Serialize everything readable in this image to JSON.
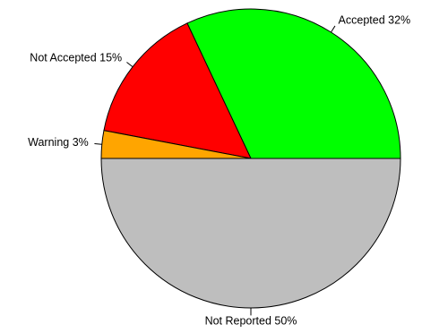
{
  "chart_data": {
    "type": "pie",
    "start_angle_deg": 0,
    "direction": "counterclockwise",
    "slices": [
      {
        "label": "Accepted 32%",
        "value": 32,
        "color": "#00ff00"
      },
      {
        "label": "Not Accepted 15%",
        "value": 15,
        "color": "#ff0000"
      },
      {
        "label": "Warning 3%",
        "value": 3,
        "color": "#ffa500"
      },
      {
        "label": "Not Reported 50%",
        "value": 50,
        "color": "#bebebe"
      }
    ]
  }
}
